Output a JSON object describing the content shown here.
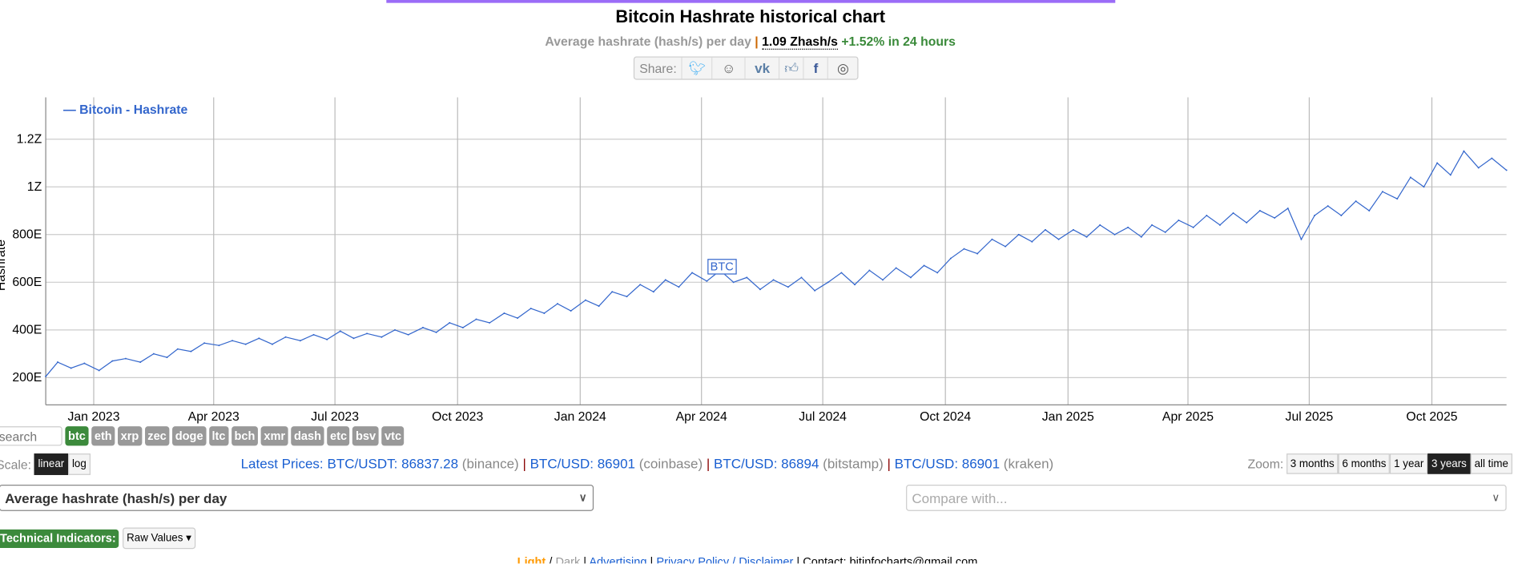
{
  "title": "Bitcoin Hashrate historical chart",
  "subtitle": {
    "metric": "Average hashrate (hash/s) per day",
    "separator": "|",
    "value": "1.09 Zhash/s",
    "change": "+1.52% in 24 hours"
  },
  "share": {
    "label": "Share:",
    "icons": [
      "twitter-icon",
      "reddit-icon",
      "vk-icon",
      "like-icon",
      "facebook-icon",
      "weibo-icon"
    ]
  },
  "chart_data": {
    "type": "line",
    "ylabel": "Hashrate",
    "legend": "— Bitcoin - Hashrate",
    "legend_placement": "top-left",
    "grid": true,
    "color": "#3366cc",
    "annotation": "BTC",
    "annotation_date": "2024-04-20",
    "y_unit": "EH/s",
    "ylim": [
      140,
      1430
    ],
    "yticks": [
      {
        "v": 200,
        "label": "200E"
      },
      {
        "v": 400,
        "label": "400E"
      },
      {
        "v": 600,
        "label": "600E"
      },
      {
        "v": 800,
        "label": "800E"
      },
      {
        "v": 1000,
        "label": "1Z"
      },
      {
        "v": 1200,
        "label": "1.2Z"
      }
    ],
    "xlim": [
      "2022-11-26",
      "2025-11-26"
    ],
    "xticks": [
      {
        "d": "2023-01-01",
        "label": "Jan 2023"
      },
      {
        "d": "2023-04-01",
        "label": "Apr 2023"
      },
      {
        "d": "2023-07-01",
        "label": "Jul 2023"
      },
      {
        "d": "2023-10-01",
        "label": "Oct 2023"
      },
      {
        "d": "2024-01-01",
        "label": "Jan 2024"
      },
      {
        "d": "2024-04-01",
        "label": "Apr 2024"
      },
      {
        "d": "2024-07-01",
        "label": "Jul 2024"
      },
      {
        "d": "2024-10-01",
        "label": "Oct 2024"
      },
      {
        "d": "2025-01-01",
        "label": "Jan 2025"
      },
      {
        "d": "2025-04-01",
        "label": "Apr 2025"
      },
      {
        "d": "2025-07-01",
        "label": "Jul 2025"
      },
      {
        "d": "2025-10-01",
        "label": "Oct 2025"
      }
    ],
    "points": [
      [
        "2022-11-26",
        205
      ],
      [
        "2022-12-05",
        265
      ],
      [
        "2022-12-15",
        240
      ],
      [
        "2022-12-25",
        260
      ],
      [
        "2023-01-05",
        230
      ],
      [
        "2023-01-15",
        270
      ],
      [
        "2023-01-25",
        280
      ],
      [
        "2023-02-05",
        265
      ],
      [
        "2023-02-15",
        300
      ],
      [
        "2023-02-25",
        285
      ],
      [
        "2023-03-05",
        320
      ],
      [
        "2023-03-15",
        310
      ],
      [
        "2023-03-25",
        345
      ],
      [
        "2023-04-05",
        335
      ],
      [
        "2023-04-15",
        355
      ],
      [
        "2023-04-25",
        340
      ],
      [
        "2023-05-05",
        365
      ],
      [
        "2023-05-15",
        340
      ],
      [
        "2023-05-25",
        370
      ],
      [
        "2023-06-05",
        355
      ],
      [
        "2023-06-15",
        380
      ],
      [
        "2023-06-25",
        360
      ],
      [
        "2023-07-05",
        395
      ],
      [
        "2023-07-15",
        365
      ],
      [
        "2023-07-25",
        385
      ],
      [
        "2023-08-05",
        370
      ],
      [
        "2023-08-15",
        400
      ],
      [
        "2023-08-25",
        380
      ],
      [
        "2023-09-05",
        410
      ],
      [
        "2023-09-15",
        390
      ],
      [
        "2023-09-25",
        430
      ],
      [
        "2023-10-05",
        410
      ],
      [
        "2023-10-15",
        445
      ],
      [
        "2023-10-25",
        430
      ],
      [
        "2023-11-05",
        470
      ],
      [
        "2023-11-15",
        450
      ],
      [
        "2023-11-25",
        490
      ],
      [
        "2023-12-05",
        470
      ],
      [
        "2023-12-15",
        510
      ],
      [
        "2023-12-25",
        480
      ],
      [
        "2024-01-05",
        525
      ],
      [
        "2024-01-15",
        500
      ],
      [
        "2024-01-25",
        560
      ],
      [
        "2024-02-05",
        540
      ],
      [
        "2024-02-15",
        590
      ],
      [
        "2024-02-25",
        560
      ],
      [
        "2024-03-05",
        610
      ],
      [
        "2024-03-15",
        580
      ],
      [
        "2024-03-25",
        640
      ],
      [
        "2024-04-05",
        605
      ],
      [
        "2024-04-15",
        650
      ],
      [
        "2024-04-25",
        600
      ],
      [
        "2024-05-05",
        620
      ],
      [
        "2024-05-15",
        570
      ],
      [
        "2024-05-25",
        610
      ],
      [
        "2024-06-05",
        580
      ],
      [
        "2024-06-15",
        620
      ],
      [
        "2024-06-25",
        565
      ],
      [
        "2024-07-05",
        600
      ],
      [
        "2024-07-15",
        640
      ],
      [
        "2024-07-25",
        590
      ],
      [
        "2024-08-05",
        650
      ],
      [
        "2024-08-15",
        610
      ],
      [
        "2024-08-25",
        660
      ],
      [
        "2024-09-05",
        620
      ],
      [
        "2024-09-15",
        670
      ],
      [
        "2024-09-25",
        640
      ],
      [
        "2024-10-05",
        700
      ],
      [
        "2024-10-15",
        740
      ],
      [
        "2024-10-25",
        720
      ],
      [
        "2024-11-05",
        780
      ],
      [
        "2024-11-15",
        750
      ],
      [
        "2024-11-25",
        800
      ],
      [
        "2024-12-05",
        770
      ],
      [
        "2024-12-15",
        820
      ],
      [
        "2024-12-25",
        780
      ],
      [
        "2025-01-05",
        820
      ],
      [
        "2025-01-15",
        790
      ],
      [
        "2025-01-25",
        840
      ],
      [
        "2025-02-05",
        800
      ],
      [
        "2025-02-15",
        830
      ],
      [
        "2025-02-25",
        790
      ],
      [
        "2025-03-05",
        840
      ],
      [
        "2025-03-15",
        810
      ],
      [
        "2025-03-25",
        860
      ],
      [
        "2025-04-05",
        830
      ],
      [
        "2025-04-15",
        880
      ],
      [
        "2025-04-25",
        840
      ],
      [
        "2025-05-05",
        890
      ],
      [
        "2025-05-15",
        850
      ],
      [
        "2025-05-25",
        900
      ],
      [
        "2025-06-05",
        870
      ],
      [
        "2025-06-15",
        910
      ],
      [
        "2025-06-25",
        780
      ],
      [
        "2025-07-05",
        880
      ],
      [
        "2025-07-15",
        920
      ],
      [
        "2025-07-25",
        880
      ],
      [
        "2025-08-05",
        940
      ],
      [
        "2025-08-15",
        900
      ],
      [
        "2025-08-25",
        980
      ],
      [
        "2025-09-05",
        950
      ],
      [
        "2025-09-15",
        1040
      ],
      [
        "2025-09-25",
        1000
      ],
      [
        "2025-10-05",
        1100
      ],
      [
        "2025-10-15",
        1050
      ],
      [
        "2025-10-25",
        1150
      ],
      [
        "2025-11-05",
        1080
      ],
      [
        "2025-11-15",
        1120
      ],
      [
        "2025-11-26",
        1070
      ]
    ]
  },
  "coins": {
    "search_placeholder": "search",
    "items": [
      "btc",
      "eth",
      "xrp",
      "zec",
      "doge",
      "ltc",
      "bch",
      "xmr",
      "dash",
      "etc",
      "bsv",
      "vtc"
    ],
    "active": "btc"
  },
  "scale": {
    "label": "Scale:",
    "options": [
      "linear",
      "log"
    ],
    "active": "linear"
  },
  "prices": {
    "label": "Latest Prices:",
    "items": [
      {
        "pair": "BTC/USDT: 86837.28",
        "exchange": "(binance)"
      },
      {
        "pair": "BTC/USD: 86901",
        "exchange": "(coinbase)"
      },
      {
        "pair": "BTC/USD: 86894",
        "exchange": "(bitstamp)"
      },
      {
        "pair": "BTC/USD: 86901",
        "exchange": "(kraken)"
      }
    ]
  },
  "zoom": {
    "label": "Zoom:",
    "options": [
      "3 months",
      "6 months",
      "1 year",
      "3 years",
      "all time"
    ],
    "active": "3 years"
  },
  "metric_select": {
    "value": "Average hashrate (hash/s) per day"
  },
  "compare_select": {
    "placeholder": "Compare with..."
  },
  "technical": {
    "label": "Technical Indicators:",
    "value": "Raw Values ▾"
  },
  "footer": {
    "light": "Light",
    "slash": " / ",
    "dark": "Dark",
    "advertising": "Advertising",
    "privacy": "Privacy Policy / Disclaimer",
    "contact": "Contact: bitinfocharts@gmail.com"
  }
}
